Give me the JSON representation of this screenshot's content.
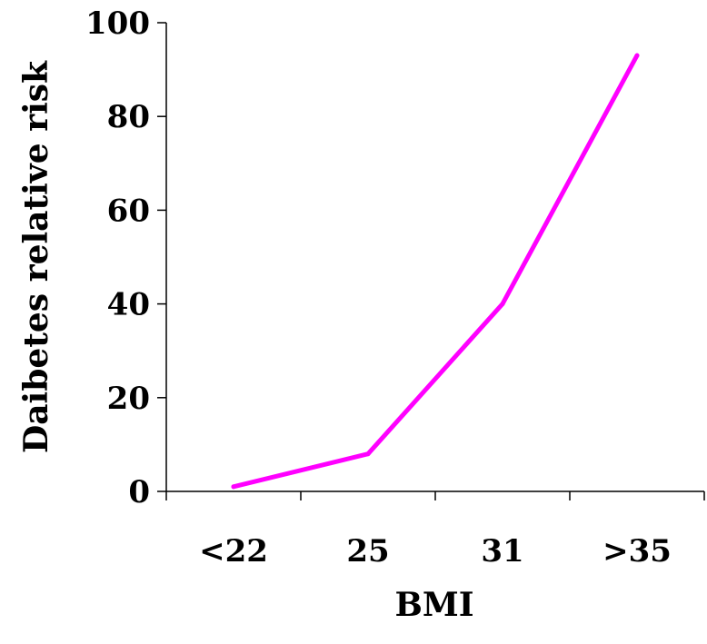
{
  "chart_data": {
    "type": "line",
    "categories": [
      "<22",
      "25",
      "31",
      ">35"
    ],
    "series": [
      {
        "values": [
          1,
          8,
          40,
          93
        ],
        "color": "#ff00ff"
      }
    ],
    "xlabel": "BMI",
    "ylabel": "Daibetes relative risk",
    "ylim": [
      0,
      100
    ],
    "yticks": [
      "0",
      "20",
      "40",
      "60",
      "80",
      "100"
    ],
    "grid": false,
    "legend": "none"
  }
}
